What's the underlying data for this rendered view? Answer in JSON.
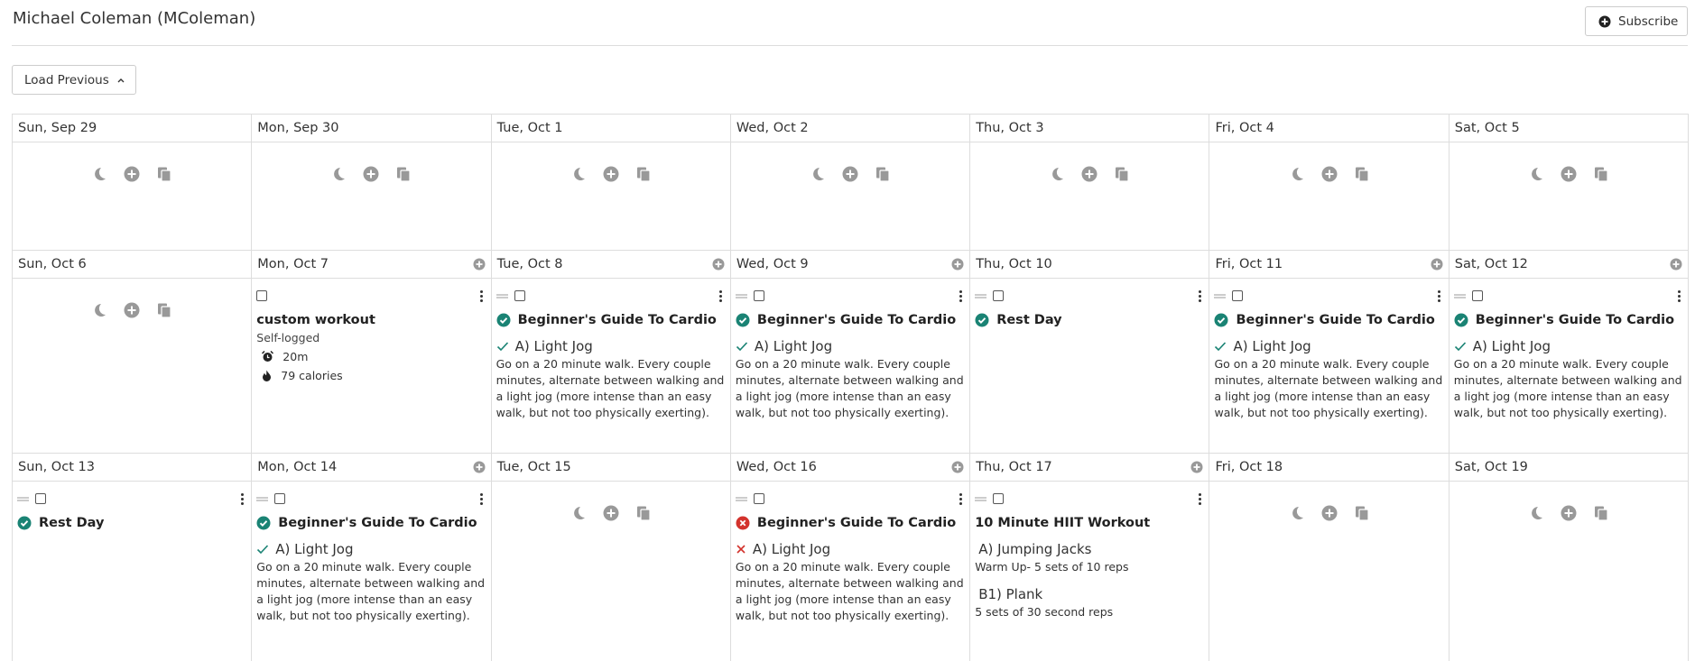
{
  "header": {
    "title": "Michael Coleman (MColeman)",
    "subscribe": "Subscribe"
  },
  "load_previous": "Load Previous",
  "weeks": [
    {
      "days": [
        {
          "date": "Sun, Sep 29",
          "can_add": false,
          "workouts": []
        },
        {
          "date": "Mon, Sep 30",
          "can_add": false,
          "workouts": []
        },
        {
          "date": "Tue, Oct 1",
          "can_add": false,
          "workouts": []
        },
        {
          "date": "Wed, Oct 2",
          "can_add": false,
          "workouts": []
        },
        {
          "date": "Thu, Oct 3",
          "can_add": false,
          "workouts": []
        },
        {
          "date": "Fri, Oct 4",
          "can_add": false,
          "workouts": []
        },
        {
          "date": "Sat, Oct 5",
          "can_add": false,
          "workouts": []
        }
      ]
    },
    {
      "days": [
        {
          "date": "Sun, Oct 6",
          "can_add": false,
          "workouts": []
        },
        {
          "date": "Mon, Oct 7",
          "can_add": true,
          "workouts": [
            {
              "status": "none",
              "handle": false,
              "title": "custom workout",
              "note": "Self-logged",
              "stats": [
                {
                  "icon": "alarm",
                  "text": "20m"
                },
                {
                  "icon": "fire",
                  "text": "79 calories"
                }
              ],
              "exercises": []
            }
          ]
        },
        {
          "date": "Tue, Oct 8",
          "can_add": true,
          "workouts": [
            {
              "status": "done",
              "handle": true,
              "title": "Beginner's Guide To Cardio",
              "exercises": [
                {
                  "mark": "check",
                  "label": "A) Light Jog",
                  "description": "Go on a 20 minute walk. Every couple minutes, alternate between walking and a light jog (more intense than an easy walk, but not too physically exerting)."
                }
              ]
            }
          ]
        },
        {
          "date": "Wed, Oct 9",
          "can_add": true,
          "workouts": [
            {
              "status": "done",
              "handle": true,
              "title": "Beginner's Guide To Cardio",
              "exercises": [
                {
                  "mark": "check",
                  "label": "A) Light Jog",
                  "description": "Go on a 20 minute walk. Every couple minutes, alternate between walking and a light jog (more intense than an easy walk, but not too physically exerting)."
                }
              ]
            }
          ]
        },
        {
          "date": "Thu, Oct 10",
          "can_add": false,
          "workouts": [
            {
              "status": "done",
              "handle": true,
              "title": "Rest Day",
              "exercises": []
            }
          ]
        },
        {
          "date": "Fri, Oct 11",
          "can_add": true,
          "workouts": [
            {
              "status": "done",
              "handle": true,
              "title": "Beginner's Guide To Cardio",
              "exercises": [
                {
                  "mark": "check",
                  "label": "A) Light Jog",
                  "description": "Go on a 20 minute walk. Every couple minutes, alternate between walking and a light jog (more intense than an easy walk, but not too physically exerting)."
                }
              ]
            }
          ]
        },
        {
          "date": "Sat, Oct 12",
          "can_add": true,
          "workouts": [
            {
              "status": "done",
              "handle": true,
              "title": "Beginner's Guide To Cardio",
              "exercises": [
                {
                  "mark": "check",
                  "label": "A) Light Jog",
                  "description": "Go on a 20 minute walk. Every couple minutes, alternate between walking and a light jog (more intense than an easy walk, but not too physically exerting)."
                }
              ]
            }
          ]
        }
      ]
    },
    {
      "days": [
        {
          "date": "Sun, Oct 13",
          "can_add": false,
          "workouts": [
            {
              "status": "done",
              "handle": true,
              "title": "Rest Day",
              "exercises": []
            }
          ]
        },
        {
          "date": "Mon, Oct 14",
          "can_add": true,
          "workouts": [
            {
              "status": "done",
              "handle": true,
              "title": "Beginner's Guide To Cardio",
              "exercises": [
                {
                  "mark": "check",
                  "label": "A) Light Jog",
                  "description": "Go on a 20 minute walk. Every couple minutes, alternate between walking and a light jog (more intense than an easy walk, but not too physically exerting)."
                }
              ]
            }
          ]
        },
        {
          "date": "Tue, Oct 15",
          "can_add": false,
          "workouts": []
        },
        {
          "date": "Wed, Oct 16",
          "can_add": true,
          "workouts": [
            {
              "status": "missed",
              "handle": true,
              "title": "Beginner's Guide To Cardio",
              "exercises": [
                {
                  "mark": "cross",
                  "label": "A) Light Jog",
                  "description": "Go on a 20 minute walk. Every couple minutes, alternate between walking and a light jog (more intense than an easy walk, but not too physically exerting)."
                }
              ]
            }
          ]
        },
        {
          "date": "Thu, Oct 17",
          "can_add": true,
          "workouts": [
            {
              "status": "none",
              "handle": true,
              "title": "10 Minute HIIT Workout",
              "exercises": [
                {
                  "mark": "none",
                  "label": "A) Jumping Jacks",
                  "description": "Warm Up- 5 sets of 10 reps"
                },
                {
                  "mark": "none",
                  "label": "B1) Plank",
                  "description": "5 sets of 30 second reps"
                }
              ]
            }
          ]
        },
        {
          "date": "Fri, Oct 18",
          "can_add": false,
          "workouts": []
        },
        {
          "date": "Sat, Oct 19",
          "can_add": false,
          "workouts": []
        }
      ]
    }
  ]
}
